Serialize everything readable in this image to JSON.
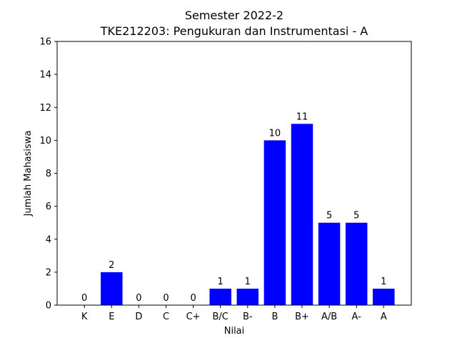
{
  "chart_data": {
    "type": "bar",
    "title": "Semester 2022-2",
    "subtitle": "TKE212203: Pengukuran dan Instrumentasi - A",
    "xlabel": "Nilai",
    "ylabel": "Jumlah Mahasiswa",
    "categories": [
      "K",
      "E",
      "D",
      "C",
      "C+",
      "B/C",
      "B-",
      "B",
      "B+",
      "A/B",
      "A-",
      "A"
    ],
    "values": [
      0,
      2,
      0,
      0,
      0,
      1,
      1,
      10,
      11,
      5,
      5,
      1
    ],
    "ylim": [
      0,
      16
    ],
    "yticks": [
      0,
      2,
      4,
      6,
      8,
      10,
      12,
      14,
      16
    ],
    "bar_color": "#0000ff",
    "grid": false,
    "legend": false
  }
}
